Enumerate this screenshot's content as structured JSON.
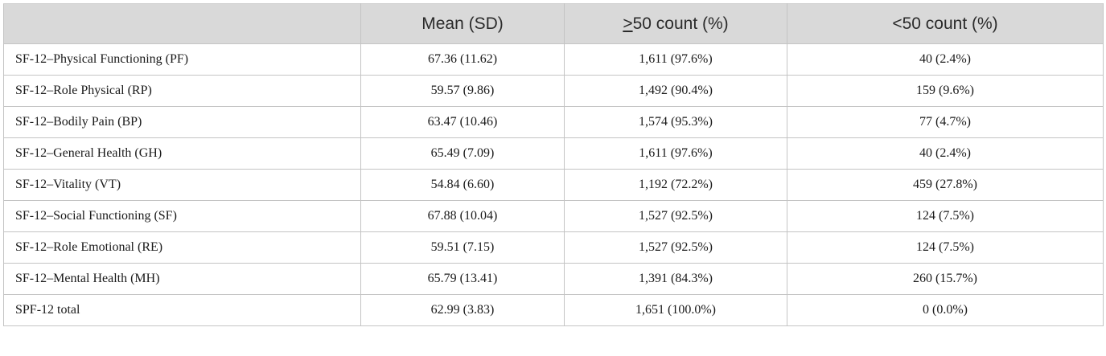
{
  "header": {
    "col0": "",
    "col1": "Mean (SD)",
    "col2_symbol": ">",
    "col2_rest": "50 count (%)",
    "col3": "<50 count (%)"
  },
  "rows": [
    {
      "label": "SF-12–Physical Functioning (PF)",
      "mean": "67.36 (11.62)",
      "ge50": "1,611 (97.6%)",
      "lt50": "40 (2.4%)"
    },
    {
      "label": "SF-12–Role Physical (RP)",
      "mean": "59.57 (9.86)",
      "ge50": "1,492 (90.4%)",
      "lt50": "159 (9.6%)"
    },
    {
      "label": "SF-12–Bodily Pain (BP)",
      "mean": "63.47 (10.46)",
      "ge50": "1,574 (95.3%)",
      "lt50": "77 (4.7%)"
    },
    {
      "label": "SF-12–General Health (GH)",
      "mean": "65.49 (7.09)",
      "ge50": "1,611 (97.6%)",
      "lt50": "40 (2.4%)"
    },
    {
      "label": "SF-12–Vitality (VT)",
      "mean": "54.84 (6.60)",
      "ge50": "1,192 (72.2%)",
      "lt50": "459 (27.8%)"
    },
    {
      "label": "SF-12–Social Functioning (SF)",
      "mean": "67.88 (10.04)",
      "ge50": "1,527 (92.5%)",
      "lt50": "124 (7.5%)"
    },
    {
      "label": "SF-12–Role Emotional (RE)",
      "mean": "59.51 (7.15)",
      "ge50": "1,527 (92.5%)",
      "lt50": "124 (7.5%)"
    },
    {
      "label": "SF-12–Mental Health (MH)",
      "mean": "65.79 (13.41)",
      "ge50": "1,391 (84.3%)",
      "lt50": "260 (15.7%)"
    },
    {
      "label": "SPF-12 total",
      "mean": "62.99 (3.83)",
      "ge50": "1,651 (100.0%)",
      "lt50": "0 (0.0%)"
    }
  ]
}
